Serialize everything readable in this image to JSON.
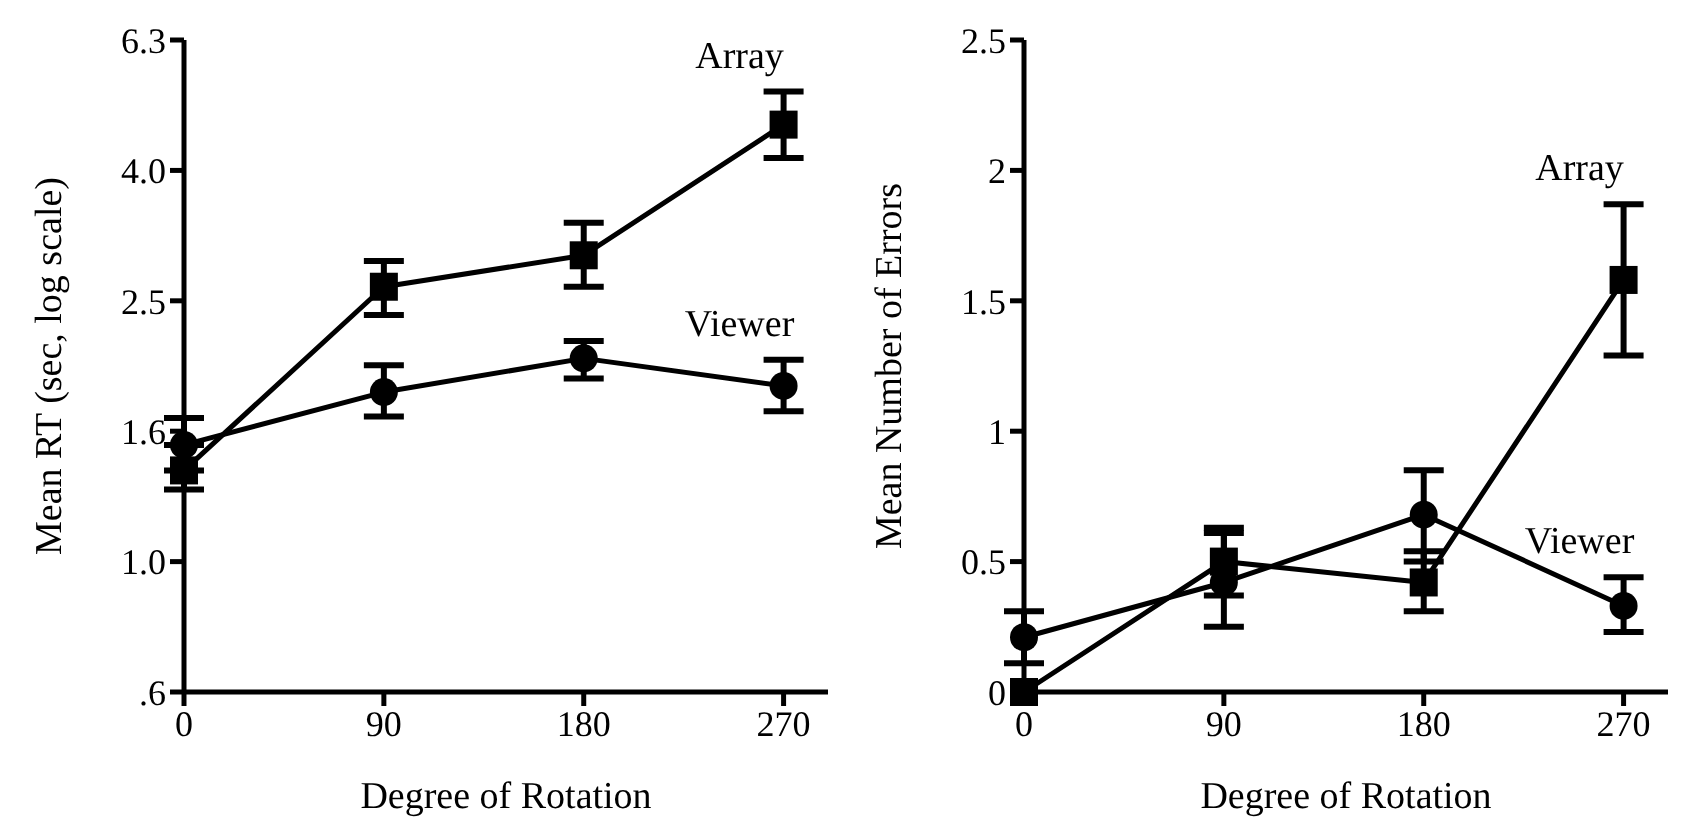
{
  "chart_data": [
    {
      "type": "line",
      "xlabel": "Degree of Rotation",
      "ylabel": "Mean RT (sec, log scale)",
      "x": [
        0,
        90,
        180,
        270
      ],
      "log": "y",
      "xlim": [
        0,
        290
      ],
      "xticks": [
        0,
        90,
        180,
        270
      ],
      "ylim": [
        0.631,
        6.31
      ],
      "yticks": [
        {
          "value": 0.631,
          "label": ".6"
        },
        {
          "value": 1,
          "label": "1.0"
        },
        {
          "value": 1.585,
          "label": "1.6"
        },
        {
          "value": 2.512,
          "label": "2.5"
        },
        {
          "value": 3.981,
          "label": "4.0"
        },
        {
          "value": 6.31,
          "label": "6.3"
        }
      ],
      "grid": false,
      "legend": false,
      "series": [
        {
          "name": "Array",
          "color": "#000000",
          "marker": "square",
          "values": [
            1.38,
            2.64,
            2.95,
            4.68
          ],
          "errors": [
            [
              1.29,
              1.38
            ],
            [
              2.39,
              2.89
            ],
            [
              2.64,
              3.31
            ],
            [
              4.16,
              5.26
            ]
          ]
        },
        {
          "name": "Viewer",
          "color": "#000000",
          "marker": "circle",
          "values": [
            1.51,
            1.82,
            2.05,
            1.86
          ],
          "errors": [
            [
              1.51,
              1.66
            ],
            [
              1.67,
              2.0
            ],
            [
              1.91,
              2.18
            ],
            [
              1.7,
              2.04
            ]
          ]
        }
      ]
    },
    {
      "type": "line",
      "xlabel": "Degree of Rotation",
      "ylabel": "Mean Number of Errors",
      "x": [
        0,
        90,
        180,
        270
      ],
      "xlim": [
        0,
        290
      ],
      "xticks": [
        0,
        90,
        180,
        270
      ],
      "ylim": [
        0,
        2.5
      ],
      "yticks": [
        0,
        0.5,
        1,
        1.5,
        2,
        2.5
      ],
      "grid": false,
      "legend": false,
      "series": [
        {
          "name": "Array",
          "color": "#000000",
          "marker": "square",
          "values": [
            0,
            0.5,
            0.42,
            1.58
          ],
          "errors": [
            null,
            [
              0.37,
              0.63
            ],
            [
              0.31,
              0.54
            ],
            [
              1.29,
              1.87
            ]
          ]
        },
        {
          "name": "Viewer",
          "color": "#000000",
          "marker": "circle",
          "values": [
            0.21,
            0.42,
            0.68,
            0.33
          ],
          "errors": [
            [
              0.11,
              0.31
            ],
            [
              0.25,
              0.61
            ],
            [
              0.5,
              0.85
            ],
            [
              0.23,
              0.44
            ]
          ]
        }
      ]
    }
  ]
}
